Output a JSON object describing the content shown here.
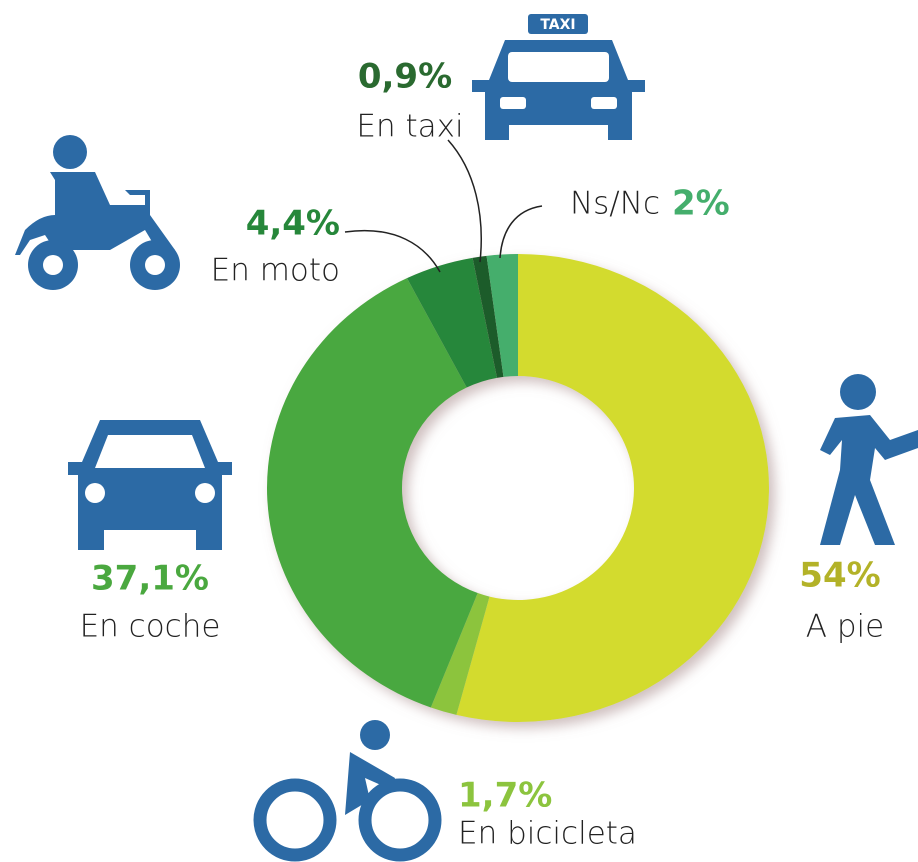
{
  "chart_data": {
    "type": "donut",
    "categories": [
      "A pie",
      "En bicicleta",
      "En coche",
      "En moto",
      "En taxi",
      "Ns/Nc"
    ],
    "values": [
      54,
      1.7,
      37.1,
      4.4,
      0.9,
      2
    ],
    "value_labels": [
      "54%",
      "1,7%",
      "37,1%",
      "4,4%",
      "0,9%",
      "2%"
    ],
    "colors": [
      "#d3db2e",
      "#8cc43e",
      "#4aa83f",
      "#26873a",
      "#1e5b2c",
      "#44ae6c"
    ]
  }
}
